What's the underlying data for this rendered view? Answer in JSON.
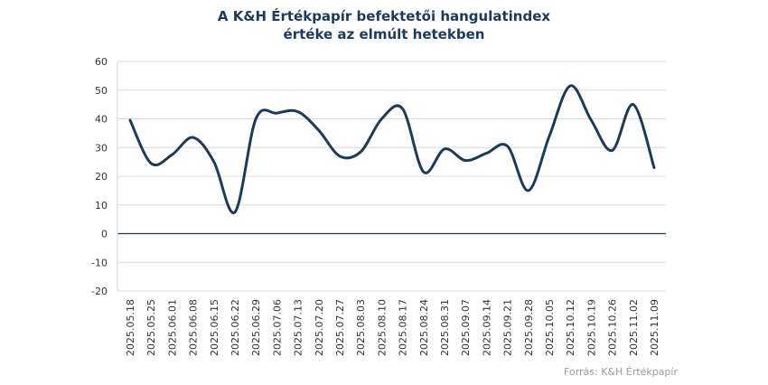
{
  "chart_data": {
    "type": "line",
    "title_line1": "A K&H Értékpapír befektetői hangulatindex",
    "title_line2": "értéke az elmúlt hetekben",
    "source": "Forrás: K&H Értékpapír",
    "xlabel": "",
    "ylabel": "",
    "ylim": [
      -20,
      60
    ],
    "yticks": [
      60,
      50,
      40,
      30,
      20,
      10,
      0,
      -10,
      -20
    ],
    "grid": true,
    "legend": "none",
    "line_color": "#1b3a5c",
    "categories": [
      "2025.05.18",
      "2025.05.25",
      "2025.06.01",
      "2025.06.08",
      "2025.06.15",
      "2025.06.22",
      "2025.06.29",
      "2025.07.06",
      "2025.07.13",
      "2025.07.20",
      "2025.07.27",
      "2025.08.03",
      "2025.08.10",
      "2025.08.17",
      "2025.08.24",
      "2025.08.31",
      "2025.09.07",
      "2025.09.14",
      "2025.09.21",
      "2025.09.28",
      "2025.10.05",
      "2025.10.12",
      "2025.10.19",
      "2025.10.26",
      "2025.11.02",
      "2025.11.09"
    ],
    "values": [
      39.5,
      24.5,
      27.5,
      33.5,
      25,
      7.5,
      40,
      42,
      42.5,
      36,
      27,
      28.5,
      40,
      43.5,
      21.5,
      29.5,
      25.5,
      28,
      30.5,
      15,
      34,
      51.5,
      39.5,
      29,
      45,
      23
    ]
  }
}
